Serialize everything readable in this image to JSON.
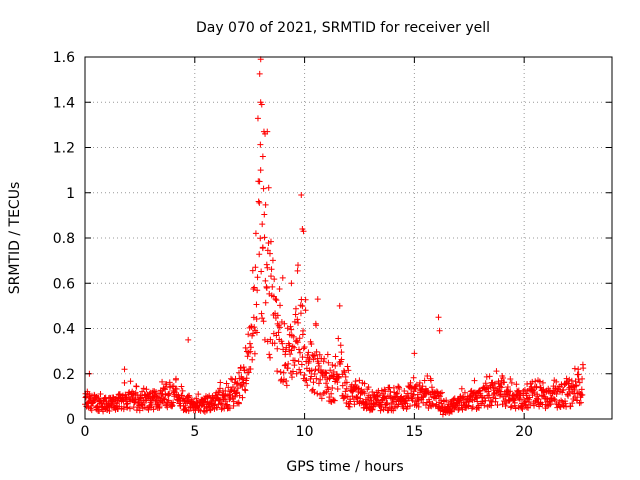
{
  "chart_data": {
    "type": "scatter",
    "title": "Day 070 of 2021, SRMTID for receiver yell",
    "xlabel": "GPS time / hours",
    "ylabel": "SRMTID / TECUs",
    "xlim": [
      0,
      24
    ],
    "ylim": [
      0,
      1.6
    ],
    "x_ticks": [
      0,
      5,
      10,
      15,
      20
    ],
    "x_tick_labels": [
      "0",
      "5",
      "10",
      "15",
      "20"
    ],
    "y_ticks": [
      0,
      0.2,
      0.4,
      0.6,
      0.8,
      1.0,
      1.2,
      1.4,
      1.6
    ],
    "y_tick_labels": [
      "0",
      "0.2",
      "0.4",
      "0.6",
      "0.8",
      "1",
      "1.2",
      "1.4",
      "1.6"
    ],
    "grid": true,
    "marker": "+",
    "series": [
      {
        "name": "SRMTID",
        "color": "#ff0000",
        "envelope": {
          "x": [
            0.0,
            0.5,
            1.0,
            1.5,
            2.0,
            2.5,
            3.0,
            3.5,
            4.0,
            4.5,
            5.0,
            5.5,
            6.0,
            6.5,
            7.0,
            7.3,
            7.6,
            7.9,
            8.0,
            8.2,
            8.4,
            8.7,
            9.0,
            9.3,
            9.6,
            9.9,
            10.2,
            10.5,
            10.8,
            11.2,
            11.6,
            12.0,
            12.5,
            13.0,
            13.5,
            14.0,
            14.5,
            15.0,
            15.5,
            16.0,
            16.2,
            16.5,
            17.0,
            17.5,
            18.0,
            18.5,
            19.0,
            19.5,
            20.0,
            20.5,
            21.0,
            21.5,
            22.0,
            22.7
          ],
          "y": [
            0.09,
            0.08,
            0.07,
            0.08,
            0.1,
            0.08,
            0.09,
            0.1,
            0.12,
            0.08,
            0.06,
            0.07,
            0.09,
            0.1,
            0.12,
            0.2,
            0.35,
            0.8,
            1.0,
            0.75,
            0.55,
            0.4,
            0.35,
            0.3,
            0.38,
            0.4,
            0.22,
            0.25,
            0.2,
            0.14,
            0.22,
            0.12,
            0.1,
            0.08,
            0.08,
            0.08,
            0.09,
            0.12,
            0.11,
            0.1,
            0.07,
            0.05,
            0.08,
            0.09,
            0.1,
            0.12,
            0.13,
            0.09,
            0.1,
            0.11,
            0.1,
            0.11,
            0.12,
            0.14
          ]
        },
        "highlights": [
          {
            "x": 8.0,
            "y": 1.4
          },
          {
            "x": 8.05,
            "y": 1.39
          },
          {
            "x": 8.15,
            "y": 1.27
          },
          {
            "x": 8.2,
            "y": 1.26
          },
          {
            "x": 8.3,
            "y": 1.27
          },
          {
            "x": 8.1,
            "y": 1.16
          },
          {
            "x": 8.0,
            "y": 1.1
          },
          {
            "x": 7.95,
            "y": 1.05
          },
          {
            "x": 9.85,
            "y": 0.99
          },
          {
            "x": 9.9,
            "y": 0.84
          },
          {
            "x": 9.95,
            "y": 0.83
          },
          {
            "x": 4.7,
            "y": 0.35
          },
          {
            "x": 16.1,
            "y": 0.45
          },
          {
            "x": 16.15,
            "y": 0.39
          },
          {
            "x": 11.6,
            "y": 0.5
          },
          {
            "x": 10.6,
            "y": 0.53
          },
          {
            "x": 9.4,
            "y": 0.6
          },
          {
            "x": 9.7,
            "y": 0.68
          },
          {
            "x": 15.0,
            "y": 0.29
          },
          {
            "x": 1.8,
            "y": 0.22
          },
          {
            "x": 0.2,
            "y": 0.2
          },
          {
            "x": 16.3,
            "y": 0.02
          }
        ]
      }
    ]
  }
}
